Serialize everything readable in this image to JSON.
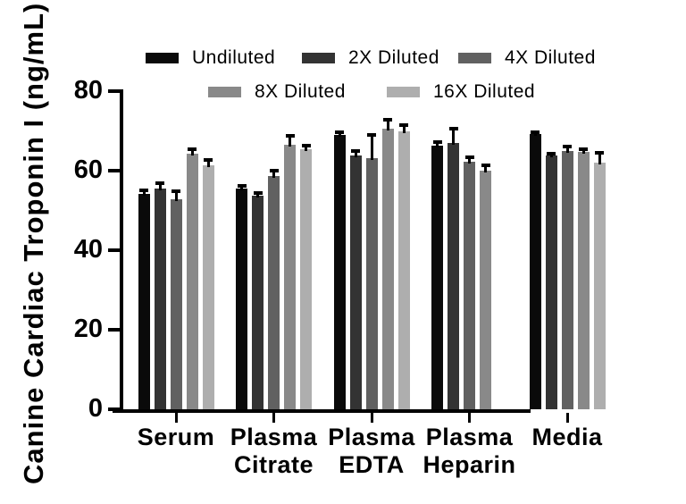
{
  "chart_data": {
    "type": "bar",
    "title": "",
    "xlabel": "",
    "ylabel": "Canine Cardiac Troponin I (ng/mL)",
    "ylim": [
      0,
      80
    ],
    "yticks": [
      "0",
      "20",
      "40",
      "60",
      "80"
    ],
    "grid": false,
    "legend_position": "top",
    "error_bars": "upper, black caps",
    "categories": [
      "Serum",
      "Plasma Citrate",
      "Plasma EDTA",
      "Plasma Heparin",
      "Media"
    ],
    "category_label_lines": [
      [
        "Serum"
      ],
      [
        "Plasma",
        "Citrate"
      ],
      [
        "Plasma",
        "EDTA"
      ],
      [
        "Plasma",
        "Heparin"
      ],
      [
        "Media"
      ]
    ],
    "note": "Plasma Heparin has no 16X Diluted bar (value absent)",
    "series": [
      {
        "name": "Undiluted",
        "color": "#0a0a0a",
        "values": [
          54.2,
          55.4,
          69.0,
          66.4,
          69.2
        ],
        "errors": [
          0.9,
          0.7,
          0.6,
          0.8,
          0.5
        ]
      },
      {
        "name": "2X Diluted",
        "color": "#333333",
        "values": [
          55.6,
          53.8,
          63.8,
          67.0,
          63.8
        ],
        "errors": [
          1.3,
          0.5,
          1.1,
          3.6,
          0.5
        ]
      },
      {
        "name": "4X Diluted",
        "color": "#616161",
        "values": [
          52.8,
          58.7,
          63.1,
          62.3,
          65.0
        ],
        "errors": [
          2.1,
          1.2,
          5.8,
          1.0,
          1.0
        ]
      },
      {
        "name": "8X Diluted",
        "color": "#898989",
        "values": [
          64.2,
          66.6,
          70.6,
          60.0,
          64.8
        ],
        "errors": [
          1.3,
          2.1,
          2.1,
          1.4,
          0.6
        ]
      },
      {
        "name": "16X Diluted",
        "color": "#aeaeae",
        "values": [
          61.4,
          65.4,
          69.8,
          null,
          62.0
        ],
        "errors": [
          1.2,
          1.0,
          1.6,
          null,
          2.6
        ]
      }
    ]
  }
}
